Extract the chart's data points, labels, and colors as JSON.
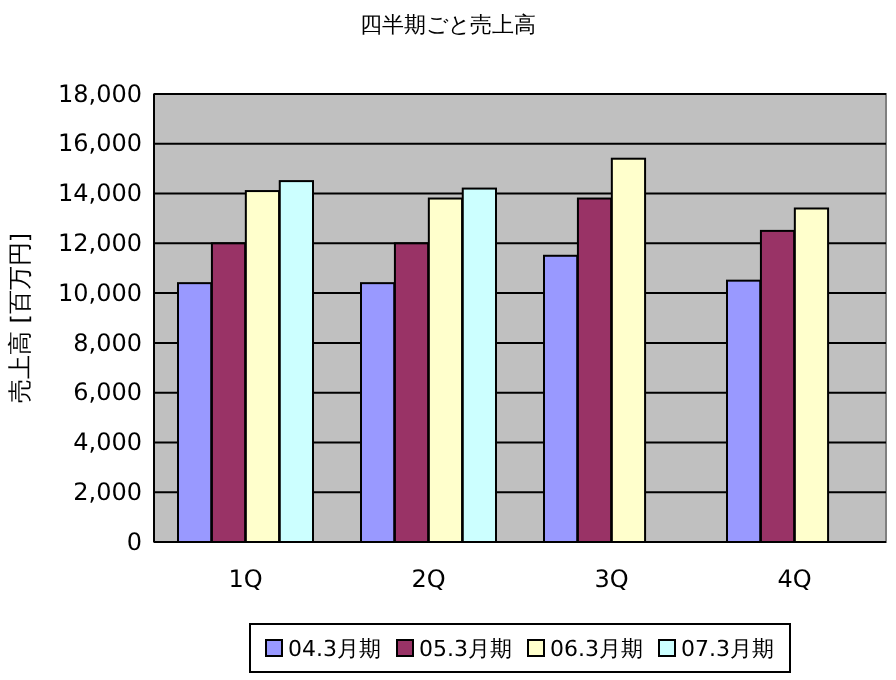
{
  "chart_data": {
    "type": "bar",
    "title": "四半期ごと売上高",
    "ylabel": "売上高 [百万円]",
    "categories": [
      "1Q",
      "2Q",
      "3Q",
      "4Q"
    ],
    "series": [
      {
        "name": "04.3月期",
        "color": "#9999ff",
        "values": [
          10400,
          10400,
          11500,
          10500
        ]
      },
      {
        "name": "05.3月期",
        "color": "#993366",
        "values": [
          12000,
          12000,
          13800,
          12500
        ]
      },
      {
        "name": "06.3月期",
        "color": "#ffffcc",
        "values": [
          14100,
          13800,
          15400,
          13400
        ]
      },
      {
        "name": "07.3月期",
        "color": "#ccffff",
        "values": [
          14500,
          14200,
          null,
          null
        ]
      }
    ],
    "ylim": [
      0,
      18000
    ],
    "yticks": [
      {
        "value": 0,
        "label": "0"
      },
      {
        "value": 2000,
        "label": "2,000"
      },
      {
        "value": 4000,
        "label": "4,000"
      },
      {
        "value": 6000,
        "label": "6,000"
      },
      {
        "value": 8000,
        "label": "8,000"
      },
      {
        "value": 10000,
        "label": "10,000"
      },
      {
        "value": 12000,
        "label": "12,000"
      },
      {
        "value": 14000,
        "label": "14,000"
      },
      {
        "value": 16000,
        "label": "16,000"
      },
      {
        "value": 18000,
        "label": "18,000"
      }
    ],
    "grid": "y",
    "legend": "bottom"
  }
}
